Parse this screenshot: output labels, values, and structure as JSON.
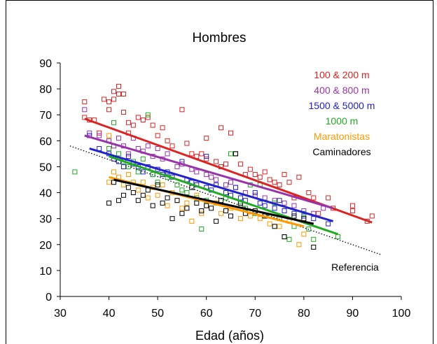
{
  "chart_data": {
    "type": "scatter",
    "title": "Hombres",
    "xlabel": "Edad (años)",
    "ylabel": "",
    "xlim": [
      30,
      100
    ],
    "ylim": [
      0,
      90
    ],
    "xticks": [
      30,
      40,
      50,
      60,
      70,
      80,
      90,
      100
    ],
    "yticks": [
      0,
      10,
      20,
      30,
      40,
      50,
      60,
      70,
      80,
      90
    ],
    "grid": false,
    "legend_position": "top-right",
    "annotation": "Referencia",
    "series": [
      {
        "name": "100 & 200 m",
        "color": "#dd2222",
        "trend": [
          [
            35,
            68.5
          ],
          [
            94,
            28.5
          ]
        ],
        "points": [
          [
            35,
            75
          ],
          [
            35,
            69
          ],
          [
            36,
            68
          ],
          [
            37,
            68
          ],
          [
            38,
            63
          ],
          [
            39,
            76
          ],
          [
            40,
            75
          ],
          [
            40,
            72
          ],
          [
            41,
            79
          ],
          [
            41,
            76
          ],
          [
            42,
            81
          ],
          [
            42,
            78
          ],
          [
            43,
            71
          ],
          [
            43,
            78
          ],
          [
            44,
            67
          ],
          [
            44,
            63
          ],
          [
            45,
            66
          ],
          [
            46,
            69
          ],
          [
            47,
            68
          ],
          [
            48,
            69
          ],
          [
            49,
            66
          ],
          [
            50,
            62
          ],
          [
            51,
            65
          ],
          [
            52,
            60
          ],
          [
            53,
            58
          ],
          [
            55,
            72
          ],
          [
            56,
            59
          ],
          [
            57,
            55
          ],
          [
            58,
            54
          ],
          [
            59,
            55
          ],
          [
            60,
            61
          ],
          [
            60,
            53
          ],
          [
            62,
            52
          ],
          [
            63,
            65
          ],
          [
            63,
            50
          ],
          [
            64,
            51
          ],
          [
            65,
            63
          ],
          [
            66,
            55
          ],
          [
            67,
            51
          ],
          [
            68,
            47
          ],
          [
            69,
            49
          ],
          [
            70,
            47
          ],
          [
            71,
            46
          ],
          [
            72,
            48
          ],
          [
            73,
            45
          ],
          [
            74,
            44
          ],
          [
            75,
            43
          ],
          [
            76,
            47
          ],
          [
            77,
            44
          ],
          [
            78,
            38
          ],
          [
            79,
            46
          ],
          [
            81,
            40
          ],
          [
            82,
            38
          ],
          [
            83,
            32
          ],
          [
            85,
            38
          ],
          [
            86,
            34
          ],
          [
            90,
            35
          ],
          [
            90,
            33
          ],
          [
            93,
            29
          ],
          [
            94,
            31
          ]
        ]
      },
      {
        "name": "400 & 800 m",
        "color": "#9933aa",
        "trend": [
          [
            35,
            62
          ],
          [
            86,
            34
          ]
        ],
        "points": [
          [
            35,
            72
          ],
          [
            36,
            63
          ],
          [
            38,
            62
          ],
          [
            40,
            60
          ],
          [
            41,
            58
          ],
          [
            42,
            61
          ],
          [
            43,
            58
          ],
          [
            44,
            55
          ],
          [
            45,
            61
          ],
          [
            46,
            57
          ],
          [
            47,
            56
          ],
          [
            48,
            58
          ],
          [
            49,
            54
          ],
          [
            50,
            57
          ],
          [
            51,
            53
          ],
          [
            52,
            55
          ],
          [
            54,
            50
          ],
          [
            55,
            51
          ],
          [
            57,
            49
          ],
          [
            58,
            48
          ],
          [
            60,
            47
          ],
          [
            61,
            46
          ],
          [
            62,
            45
          ],
          [
            64,
            43
          ],
          [
            65,
            44
          ],
          [
            66,
            42
          ],
          [
            68,
            40
          ],
          [
            70,
            39
          ],
          [
            72,
            38
          ],
          [
            74,
            37
          ],
          [
            76,
            36
          ],
          [
            78,
            35
          ],
          [
            80,
            33
          ],
          [
            82,
            32
          ],
          [
            84,
            34
          ]
        ]
      },
      {
        "name": "1500 & 5000 m",
        "color": "#2222cc",
        "trend": [
          [
            36,
            57
          ],
          [
            86,
            29
          ]
        ],
        "points": [
          [
            36,
            62
          ],
          [
            38,
            57
          ],
          [
            40,
            55
          ],
          [
            41,
            53
          ],
          [
            42,
            52
          ],
          [
            43,
            50
          ],
          [
            44,
            54
          ],
          [
            45,
            51
          ],
          [
            46,
            50
          ],
          [
            47,
            48
          ],
          [
            48,
            50
          ],
          [
            49,
            47
          ],
          [
            50,
            49
          ],
          [
            51,
            47
          ],
          [
            52,
            48
          ],
          [
            53,
            46
          ],
          [
            55,
            52
          ],
          [
            56,
            45
          ],
          [
            57,
            44
          ],
          [
            58,
            43
          ],
          [
            60,
            54
          ],
          [
            60,
            42
          ],
          [
            61,
            41
          ],
          [
            62,
            43
          ],
          [
            64,
            40
          ],
          [
            65,
            39
          ],
          [
            66,
            42
          ],
          [
            67,
            38
          ],
          [
            68,
            37
          ],
          [
            70,
            40
          ],
          [
            71,
            36
          ],
          [
            72,
            35
          ],
          [
            74,
            34
          ],
          [
            75,
            37
          ],
          [
            76,
            33
          ],
          [
            78,
            32
          ],
          [
            80,
            31
          ],
          [
            82,
            30
          ],
          [
            85,
            28
          ]
        ]
      },
      {
        "name": "1000 m",
        "color": "#22aa22",
        "trend": [
          [
            40,
            54
          ],
          [
            87,
            24
          ]
        ],
        "points": [
          [
            33,
            48
          ],
          [
            40,
            57
          ],
          [
            41,
            67
          ],
          [
            42,
            55
          ],
          [
            43,
            52
          ],
          [
            44,
            50
          ],
          [
            45,
            52
          ],
          [
            46,
            48
          ],
          [
            47,
            53
          ],
          [
            48,
            70
          ],
          [
            49,
            47
          ],
          [
            50,
            44
          ],
          [
            52,
            46
          ],
          [
            54,
            43
          ],
          [
            55,
            41
          ],
          [
            56,
            40
          ],
          [
            58,
            38
          ],
          [
            59,
            26
          ],
          [
            60,
            37
          ],
          [
            62,
            36
          ],
          [
            64,
            38
          ],
          [
            65,
            55
          ],
          [
            66,
            55
          ],
          [
            67,
            35
          ],
          [
            68,
            34
          ],
          [
            69,
            43
          ],
          [
            70,
            32
          ],
          [
            71,
            43
          ],
          [
            72,
            31
          ],
          [
            73,
            31
          ],
          [
            74,
            36
          ],
          [
            75,
            30
          ],
          [
            76,
            23
          ],
          [
            77,
            22
          ],
          [
            78,
            27
          ],
          [
            80,
            32
          ],
          [
            81,
            26
          ],
          [
            82,
            22
          ],
          [
            87,
            23
          ]
        ]
      },
      {
        "name": "Maratonistas",
        "color": "#ff9900",
        "trend": [
          [
            40,
            46
          ],
          [
            80,
            27
          ]
        ],
        "points": [
          [
            40,
            62
          ],
          [
            40,
            44
          ],
          [
            41,
            48
          ],
          [
            42,
            46
          ],
          [
            43,
            43
          ],
          [
            44,
            47
          ],
          [
            45,
            44
          ],
          [
            46,
            41
          ],
          [
            47,
            44
          ],
          [
            48,
            38
          ],
          [
            49,
            42
          ],
          [
            50,
            39
          ],
          [
            51,
            43
          ],
          [
            52,
            35
          ],
          [
            53,
            40
          ],
          [
            54,
            37
          ],
          [
            55,
            34
          ],
          [
            56,
            36
          ],
          [
            57,
            29
          ],
          [
            58,
            39
          ],
          [
            59,
            32
          ],
          [
            60,
            35
          ],
          [
            62,
            36
          ],
          [
            63,
            32
          ],
          [
            65,
            34
          ],
          [
            67,
            30
          ],
          [
            69,
            31
          ],
          [
            71,
            30
          ],
          [
            73,
            28
          ],
          [
            75,
            27
          ],
          [
            77,
            29
          ],
          [
            79,
            20
          ],
          [
            80,
            24
          ]
        ]
      },
      {
        "name": "Caminadores",
        "color": "#000000",
        "trend": [
          [
            41,
            45
          ],
          [
            82,
            28
          ]
        ],
        "points": [
          [
            40,
            36
          ],
          [
            41,
            44
          ],
          [
            42,
            37
          ],
          [
            43,
            39
          ],
          [
            44,
            42
          ],
          [
            45,
            40
          ],
          [
            46,
            37
          ],
          [
            47,
            39
          ],
          [
            48,
            41
          ],
          [
            49,
            35
          ],
          [
            50,
            43
          ],
          [
            51,
            36
          ],
          [
            52,
            38
          ],
          [
            53,
            30
          ],
          [
            54,
            37
          ],
          [
            55,
            32
          ],
          [
            56,
            34
          ],
          [
            57,
            42
          ],
          [
            58,
            36
          ],
          [
            59,
            33
          ],
          [
            60,
            35
          ],
          [
            61,
            34
          ],
          [
            62,
            29
          ],
          [
            63,
            37
          ],
          [
            64,
            33
          ],
          [
            65,
            31
          ],
          [
            66,
            55
          ],
          [
            67,
            36
          ],
          [
            68,
            32
          ],
          [
            70,
            33
          ],
          [
            72,
            31
          ],
          [
            74,
            27
          ],
          [
            76,
            23
          ],
          [
            78,
            31
          ],
          [
            80,
            30
          ],
          [
            82,
            19
          ]
        ]
      }
    ]
  }
}
